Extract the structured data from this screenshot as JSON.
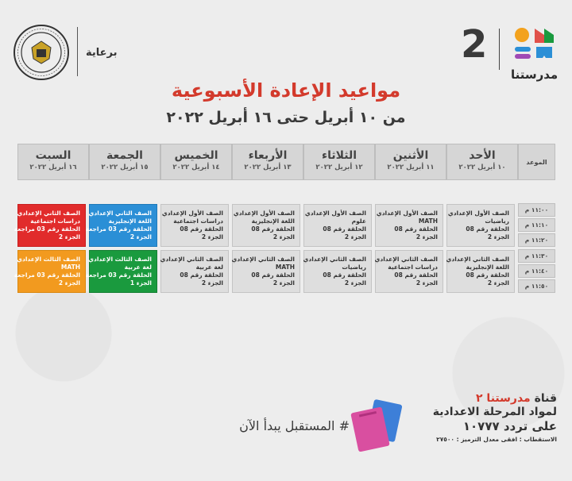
{
  "header": {
    "sponsor": "برعاية",
    "brand_number": "2",
    "brand_name": "مدرستنا",
    "title": "مواعيد الإعادة الأسبوعية",
    "subtitle": "من ١٠ أبريل حتى ١٦ أبريل ٢٠٢٢"
  },
  "table": {
    "time_header": "الموعد",
    "days": [
      {
        "name": "الأحد",
        "date": "١٠ أبريل ٢٠٢٢"
      },
      {
        "name": "الأثنين",
        "date": "١١ أبريل ٢٠٢٢"
      },
      {
        "name": "الثلاثاء",
        "date": "١٢ أبريل ٢٠٢٢"
      },
      {
        "name": "الأربعاء",
        "date": "١٣ أبريل ٢٠٢٢"
      },
      {
        "name": "الخميس",
        "date": "١٤ أبريل ٢٠٢٢"
      },
      {
        "name": "الجمعة",
        "date": "١٥ أبريل ٢٠٢٢"
      },
      {
        "name": "السبت",
        "date": "١٦ أبريل ٢٠٢٢"
      }
    ],
    "times": [
      "١١:٠٠ م",
      "١١:١٠ م",
      "١١:٢٠ م",
      "١١:٣٠ م",
      "١١:٤٠ م",
      "١١:٥٠ م"
    ],
    "row1": [
      {
        "l1": "الصف الأول الإعدادي",
        "l2": "رياضيات",
        "l3": "الحلقة رقم 08",
        "l4": "الجزء 2",
        "color": "gray"
      },
      {
        "l1": "الصف الأول الإعدادي",
        "l2": "MATH",
        "l3": "الحلقة رقم 08",
        "l4": "الجزء 2",
        "color": "gray"
      },
      {
        "l1": "الصف الأول الإعدادي",
        "l2": "علوم",
        "l3": "الحلقة رقم 08",
        "l4": "الجزء 2",
        "color": "gray"
      },
      {
        "l1": "الصف الأول الإعدادي",
        "l2": "اللغة الإنجليزية",
        "l3": "الحلقة رقم 08",
        "l4": "الجزء 2",
        "color": "gray"
      },
      {
        "l1": "الصف الأول الإعدادي",
        "l2": "دراسات اجتماعية",
        "l3": "الحلقة رقم 08",
        "l4": "الجزء 2",
        "color": "gray"
      },
      {
        "l1": "الصف الثاني الإعدادي",
        "l2": "اللغة الإنجليزية",
        "l3": "الحلقة رقم 03 مراجعة",
        "l4": "الجزء 2",
        "color": "blue"
      },
      {
        "l1": "الصف الثاني الإعدادي",
        "l2": "دراسات اجتماعية",
        "l3": "الحلقة رقم 03 مراجعة",
        "l4": "الجزء 2",
        "color": "red"
      }
    ],
    "row2": [
      {
        "l1": "الصف الثاني الإعدادي",
        "l2": "اللغة الإنجليزية",
        "l3": "الحلقة رقم 08",
        "l4": "الجزء 2",
        "color": "gray"
      },
      {
        "l1": "الصف الثاني الإعدادي",
        "l2": "دراسات اجتماعية",
        "l3": "الحلقة رقم 08",
        "l4": "الجزء 2",
        "color": "gray"
      },
      {
        "l1": "الصف الثاني الإعدادي",
        "l2": "رياضيات",
        "l3": "الحلقة رقم 08",
        "l4": "الجزء 2",
        "color": "gray"
      },
      {
        "l1": "الصف الثاني الإعدادي",
        "l2": "MATH",
        "l3": "الحلقة رقم 08",
        "l4": "الجزء 2",
        "color": "gray"
      },
      {
        "l1": "الصف الثاني الإعدادي",
        "l2": "لغة عربية",
        "l3": "الحلقة رقم 08",
        "l4": "الجزء 2",
        "color": "gray"
      },
      {
        "l1": "الصف الثالث الإعدادي",
        "l2": "لغة عربية",
        "l3": "الحلقة رقم 03 مراجعة",
        "l4": "الجزء 1",
        "color": "green"
      },
      {
        "l1": "الصف الثالث الإعدادي",
        "l2": "MATH",
        "l3": "الحلقة رقم 03 مراجعة",
        "l4": "الجزء 2",
        "color": "orange"
      }
    ]
  },
  "footer": {
    "hashtag": "# المستقبل يبدأ الآن",
    "channel_prefix": "قناة",
    "channel_name": "مدرستنا ٢",
    "line2": "لمواد المرحلة الاعدادية",
    "line3": "على تردد ١٠٧٧٧",
    "line4": "الاستقطاب : افقى معدل الترميز : ٢٧٥٠٠"
  },
  "colors": {
    "title": "#d33a2c",
    "red": "#e12b2b",
    "blue": "#2b8fd6",
    "orange": "#f29a1f",
    "green": "#1a9a3e"
  }
}
